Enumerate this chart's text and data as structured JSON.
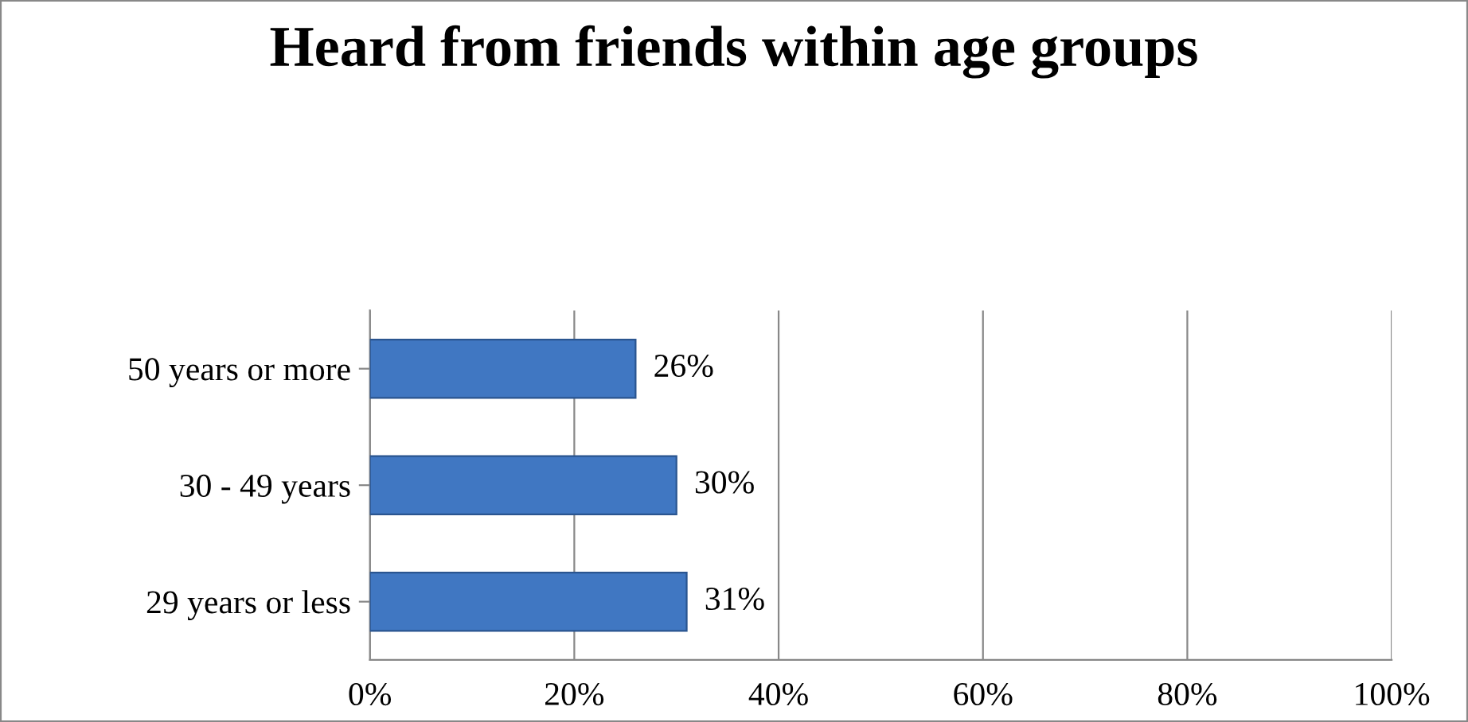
{
  "chart_data": {
    "type": "bar",
    "orientation": "horizontal",
    "title": "Heard from friends within age groups",
    "categories": [
      "50 years or more",
      "30 - 49 years",
      "29 years or less"
    ],
    "values": [
      26,
      30,
      31
    ],
    "color": "#4077c2",
    "value_labels": [
      "26%",
      "30%",
      "31%"
    ],
    "xlim": [
      0,
      100
    ],
    "xticks": [
      {
        "value": 0,
        "label": "0%"
      },
      {
        "value": 20,
        "label": "20%"
      },
      {
        "value": 40,
        "label": "40%"
      },
      {
        "value": 60,
        "label": "60%"
      },
      {
        "value": 80,
        "label": "80%"
      },
      {
        "value": 100,
        "label": "100%"
      }
    ],
    "grid": "x",
    "legend": false
  }
}
